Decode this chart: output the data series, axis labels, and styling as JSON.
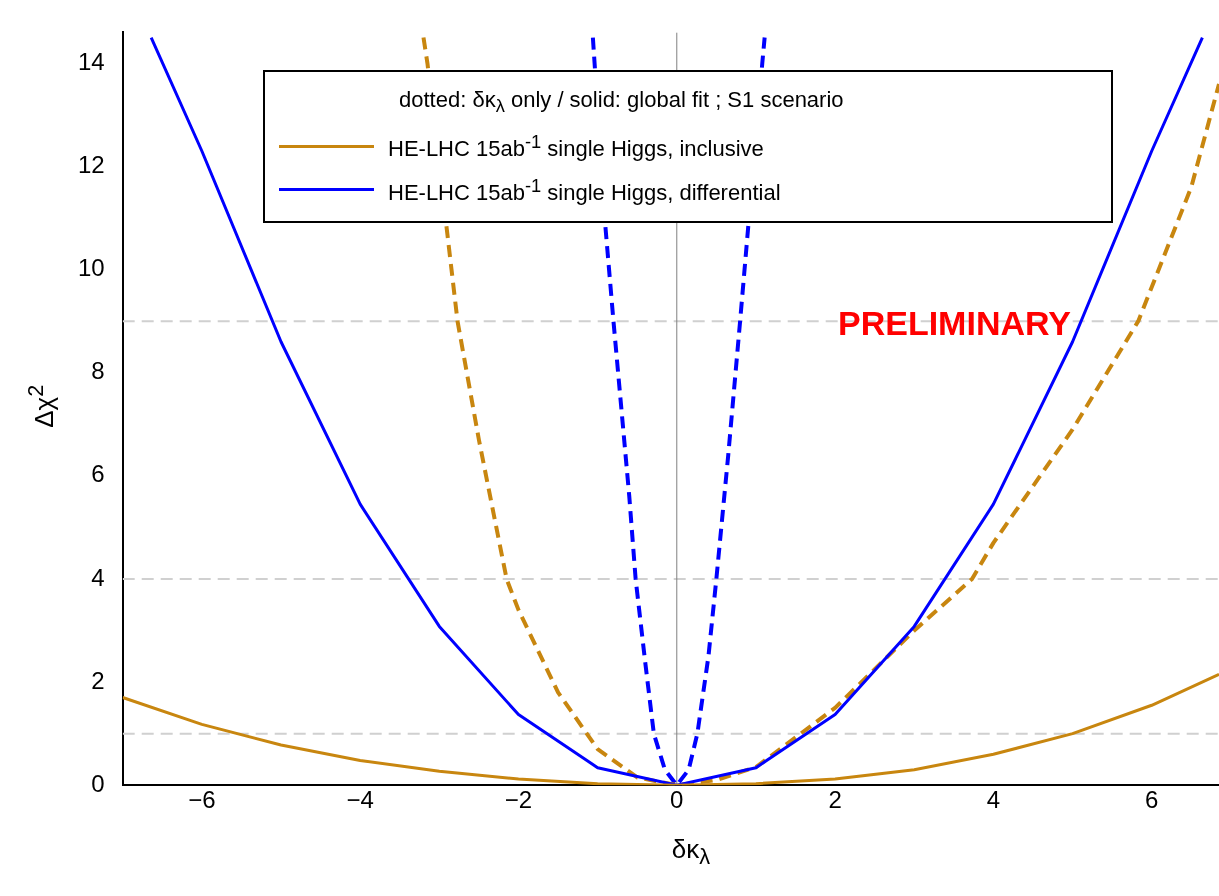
{
  "chart_data": {
    "type": "line",
    "xlabel": "δκ$_{λ}$",
    "ylabel": "Δχ$^{2}$",
    "legend_title": "dotted: δκ$_{λ}$ only  /  solid: global fit ; S1 scenario",
    "legend": "top",
    "grid": false,
    "xlim": [
      -7,
      6.85
    ],
    "ylim": [
      0,
      14.6
    ],
    "xticks": [
      -6,
      -4,
      -2,
      0,
      2,
      4,
      6
    ],
    "yticks": [
      0,
      2,
      4,
      6,
      8,
      10,
      12,
      14
    ],
    "ref_lines": [
      {
        "axis": "y",
        "value": 1,
        "color": "#d0d0d0",
        "line_style": "dashed"
      },
      {
        "axis": "y",
        "value": 4,
        "color": "#d0d0d0",
        "line_style": "dashed"
      },
      {
        "axis": "y",
        "value": 9,
        "color": "#d0d0d0",
        "line_style": "dashed"
      },
      {
        "axis": "x",
        "value": 0,
        "color": "#808080",
        "line_style": "solid"
      }
    ],
    "annotations": [
      "PRELIMINARY"
    ],
    "series": [
      {
        "name": "HE-LHC 15ab$^{-1}$ single Higgs, inclusive",
        "color": "#c8860f",
        "line_style": "solid",
        "x": [
          -7,
          -6,
          -5,
          -4,
          -3,
          -2,
          -1,
          0,
          1,
          2,
          3,
          4,
          5,
          6,
          6.85
        ],
        "values": [
          1.7,
          1.18,
          0.78,
          0.48,
          0.27,
          0.12,
          0.03,
          0,
          0.03,
          0.12,
          0.3,
          0.6,
          1.0,
          1.55,
          2.15
        ]
      },
      {
        "name": "HE-LHC 15ab$^{-1}$ single Higgs, differential",
        "color": "#0000ff",
        "line_style": "solid",
        "x": [
          -6.64,
          -6,
          -5,
          -4,
          -3,
          -2,
          -1,
          0,
          1,
          2,
          3,
          4,
          5,
          6,
          6.64
        ],
        "values": [
          14.5,
          12.3,
          8.6,
          5.45,
          3.08,
          1.37,
          0.34,
          0,
          0.34,
          1.37,
          3.08,
          5.45,
          8.6,
          12.3,
          14.5
        ]
      },
      {
        "color": "#c8860f",
        "line_style": "dashed",
        "x": [
          -3.2,
          -3.15,
          -2.77,
          -2.5,
          -2.15,
          -2,
          -1.5,
          -1,
          -0.5,
          0,
          0.5,
          1,
          2,
          3,
          3.73,
          4,
          5,
          5.83,
          6.5,
          6.85
        ],
        "values": [
          14.5,
          14,
          9,
          6.7,
          4,
          3.4,
          1.8,
          0.7,
          0.15,
          0,
          0.1,
          0.35,
          1.5,
          3,
          4,
          4.7,
          6.9,
          9,
          11.6,
          13.6
        ]
      },
      {
        "color": "#0000ff",
        "line_style": "dashed",
        "x": [
          -1.06,
          -0.9,
          -0.8,
          -0.6,
          -0.52,
          -0.4,
          -0.29,
          -0.15,
          0,
          0.15,
          0.26,
          0.4,
          0.5,
          0.65,
          0.8,
          1.08,
          1.11
        ],
        "values": [
          14.5,
          10.8,
          9,
          5.6,
          4,
          2.4,
          1,
          0.3,
          0,
          0.3,
          1,
          2.5,
          4,
          6.4,
          9,
          14,
          14.5
        ]
      }
    ]
  }
}
